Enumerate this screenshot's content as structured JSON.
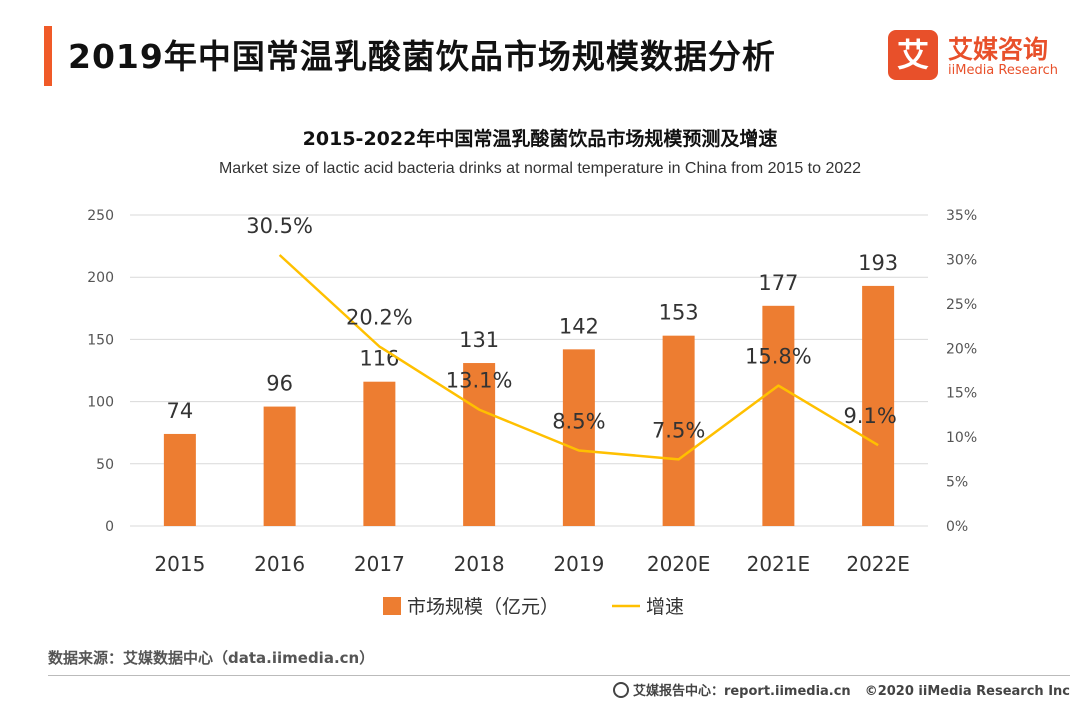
{
  "header": {
    "title": "2019年中国常温乳酸菌饮品市场规模数据分析",
    "logo_mark": "艾",
    "logo_cn": "艾媒咨询",
    "logo_en": "iiMedia Research"
  },
  "chart_data": {
    "type": "bar",
    "title": "2015-2022年中国常温乳酸菌饮品市场规模预测及增速",
    "subtitle": "Market size of lactic acid bacteria drinks at normal temperature in China from 2015 to 2022",
    "categories": [
      "2015",
      "2016",
      "2017",
      "2018",
      "2019",
      "2020E",
      "2021E",
      "2022E"
    ],
    "series": [
      {
        "name": "市场规模（亿元）",
        "type": "bar",
        "axis": "left",
        "values": [
          74,
          96,
          116,
          131,
          142,
          153,
          177,
          193
        ],
        "labels": [
          "74",
          "96",
          "116",
          "131",
          "142",
          "153",
          "177",
          "193"
        ],
        "color": "#ed7d31"
      },
      {
        "name": "增速",
        "type": "line",
        "axis": "right",
        "values": [
          null,
          30.5,
          20.2,
          13.1,
          8.5,
          7.5,
          15.8,
          9.1
        ],
        "labels": [
          "",
          "30.5%",
          "20.2%",
          "13.1%",
          "8.5%",
          "7.5%",
          "15.8%",
          "9.1%"
        ],
        "color": "#ffc000"
      }
    ],
    "y_left": {
      "min": 0,
      "max": 250,
      "ticks": [
        "0",
        "50",
        "100",
        "150",
        "200",
        "250"
      ]
    },
    "y_right": {
      "min": 0,
      "max": 35,
      "ticks": [
        "0%",
        "5%",
        "10%",
        "15%",
        "20%",
        "25%",
        "30%",
        "35%"
      ]
    },
    "grid": true,
    "legend_position": "bottom"
  },
  "footer": {
    "source": "数据来源：艾媒数据中心（data.iimedia.cn）",
    "report_center": "艾媒报告中心：report.iimedia.cn",
    "copyright": "©2020  iiMedia Research  Inc"
  },
  "colors": {
    "accent": "#f05a28",
    "bar": "#ed7d31",
    "line": "#ffc000",
    "grid": "#d9d9d9"
  }
}
